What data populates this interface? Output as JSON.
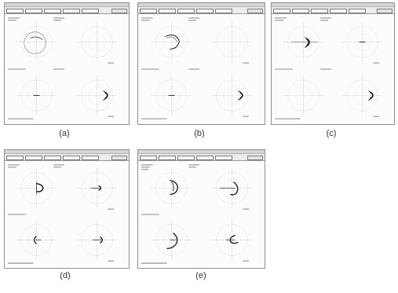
{
  "captions": [
    "(a)",
    "(b)",
    "(c)",
    "(d)",
    "(e)"
  ],
  "window": {
    "title": "",
    "toolbar_buttons": [
      "",
      "",
      "",
      "",
      "",
      ""
    ]
  },
  "panels": [
    {
      "id": "a",
      "caption": "(a)",
      "traces": {
        "tl": "left-circle",
        "tr": "none",
        "bl": "tiny",
        "br": "right-blob"
      }
    },
    {
      "id": "b",
      "caption": "(b)",
      "traces": {
        "tl": "arc",
        "tr": "none",
        "bl": "tiny",
        "br": "right-blob"
      }
    },
    {
      "id": "c",
      "caption": "(c)",
      "traces": {
        "tl": "center-blob",
        "tr": "tiny",
        "bl": "none",
        "br": "right-blob"
      }
    },
    {
      "id": "d",
      "caption": "(d)",
      "traces": {
        "tl": "arc-small",
        "tr": "small-right",
        "bl": "small-left",
        "br": "right-small"
      }
    },
    {
      "id": "e",
      "caption": "(e)",
      "traces": {
        "tl": "arc-large",
        "tr": "arc-right",
        "bl": "arc-left",
        "br": "arc-right2"
      }
    }
  ]
}
